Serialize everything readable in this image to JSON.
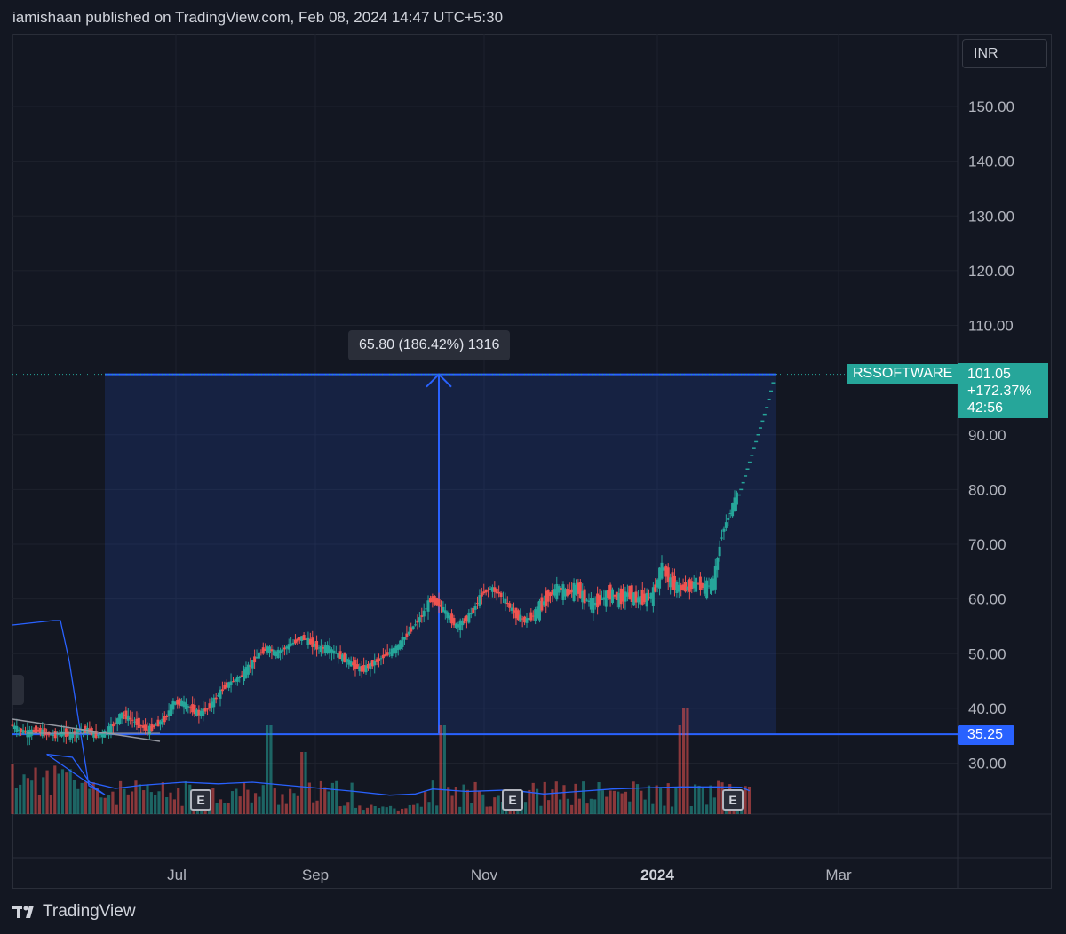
{
  "header": {
    "text": "iamishaan published on TradingView.com, Feb 08, 2024 14:47 UTC+5:30"
  },
  "currency": "INR",
  "measure": {
    "label": "65.80 (186.42%) 1316"
  },
  "symbol": {
    "name": "RSSOFTWARE",
    "price": "101.05",
    "change": "+172.37%",
    "countdown": "42:56"
  },
  "low_level": {
    "label": "35.25"
  },
  "earnings_marker": {
    "label": "E"
  },
  "footer": {
    "brand": "TradingView"
  },
  "colors": {
    "background": "#131722",
    "up": "#26a69a",
    "down": "#ef5350",
    "measure": "#2962ff",
    "volume_ma": "#2962ff"
  },
  "chart_data": {
    "type": "candlestick",
    "symbol": "RSSOFTWARE",
    "y_ticks": [
      "150.00",
      "140.00",
      "130.00",
      "120.00",
      "110.00",
      "90.00",
      "80.00",
      "70.00",
      "60.00",
      "50.00",
      "40.00",
      "30.00"
    ],
    "x_ticks": [
      {
        "label": "Jul",
        "bold": false
      },
      {
        "label": "Sep",
        "bold": false
      },
      {
        "label": "Nov",
        "bold": false
      },
      {
        "label": "2024",
        "bold": true
      },
      {
        "label": "Mar",
        "bold": false
      }
    ],
    "ylim": [
      22,
      162
    ],
    "measure_range": {
      "from": 35.25,
      "to": 101.05,
      "change": 65.8,
      "change_pct": 186.42,
      "bars": 1316
    },
    "last_price": 101.05,
    "price_points": [
      [
        0,
        37
      ],
      [
        10,
        36
      ],
      [
        20,
        35.5
      ],
      [
        30,
        36
      ],
      [
        40,
        35.5
      ],
      [
        50,
        35
      ],
      [
        60,
        35.5
      ],
      [
        70,
        35.2
      ],
      [
        80,
        36
      ],
      [
        90,
        36
      ],
      [
        100,
        35
      ],
      [
        110,
        35.5
      ],
      [
        120,
        37
      ],
      [
        130,
        39
      ],
      [
        140,
        38
      ],
      [
        150,
        37
      ],
      [
        160,
        36
      ],
      [
        170,
        37
      ],
      [
        180,
        38
      ],
      [
        190,
        41
      ],
      [
        200,
        41
      ],
      [
        210,
        40
      ],
      [
        220,
        39
      ],
      [
        230,
        40
      ],
      [
        240,
        42
      ],
      [
        250,
        44
      ],
      [
        260,
        45
      ],
      [
        270,
        46
      ],
      [
        280,
        48
      ],
      [
        290,
        50
      ],
      [
        300,
        51
      ],
      [
        310,
        50
      ],
      [
        320,
        51
      ],
      [
        330,
        52
      ],
      [
        340,
        53
      ],
      [
        350,
        52
      ],
      [
        360,
        51
      ],
      [
        370,
        51
      ],
      [
        380,
        50
      ],
      [
        390,
        49
      ],
      [
        400,
        48
      ],
      [
        410,
        47
      ],
      [
        420,
        48
      ],
      [
        430,
        49
      ],
      [
        440,
        50
      ],
      [
        450,
        51
      ],
      [
        460,
        53
      ],
      [
        470,
        55
      ],
      [
        480,
        57
      ],
      [
        490,
        60
      ],
      [
        500,
        59
      ],
      [
        510,
        57
      ],
      [
        520,
        55
      ],
      [
        530,
        56
      ],
      [
        540,
        58
      ],
      [
        550,
        61
      ],
      [
        560,
        62
      ],
      [
        570,
        61
      ],
      [
        580,
        59
      ],
      [
        590,
        57
      ],
      [
        600,
        56
      ],
      [
        610,
        57
      ],
      [
        620,
        59
      ],
      [
        630,
        61
      ],
      [
        640,
        62
      ],
      [
        650,
        61
      ],
      [
        660,
        62
      ],
      [
        670,
        60
      ],
      [
        680,
        59
      ],
      [
        690,
        60
      ],
      [
        700,
        61
      ],
      [
        710,
        60
      ],
      [
        720,
        61
      ],
      [
        730,
        60
      ],
      [
        740,
        60
      ],
      [
        750,
        61
      ],
      [
        760,
        66
      ],
      [
        770,
        63
      ],
      [
        780,
        62
      ],
      [
        790,
        62
      ],
      [
        800,
        63
      ],
      [
        810,
        62
      ],
      [
        820,
        63
      ],
      [
        830,
        72
      ],
      [
        840,
        76
      ],
      [
        850,
        80
      ],
      [
        860,
        85
      ],
      [
        870,
        90
      ],
      [
        880,
        95
      ],
      [
        890,
        101
      ]
    ],
    "volume_ma": [
      [
        0,
        16
      ],
      [
        40,
        15
      ],
      [
        70,
        14
      ],
      [
        90,
        6
      ],
      [
        120,
        4
      ],
      [
        150,
        5
      ],
      [
        200,
        6
      ],
      [
        240,
        5.5
      ],
      [
        280,
        6
      ],
      [
        320,
        5
      ],
      [
        360,
        4
      ],
      [
        400,
        3
      ],
      [
        440,
        1.8
      ],
      [
        470,
        2.2
      ],
      [
        490,
        3.8
      ],
      [
        530,
        3
      ],
      [
        580,
        3.5
      ],
      [
        620,
        2.2
      ],
      [
        660,
        3
      ],
      [
        700,
        3.8
      ],
      [
        740,
        4.2
      ],
      [
        780,
        4.5
      ],
      [
        820,
        4.5
      ],
      [
        850,
        4.4
      ],
      [
        860,
        3.2
      ]
    ]
  }
}
